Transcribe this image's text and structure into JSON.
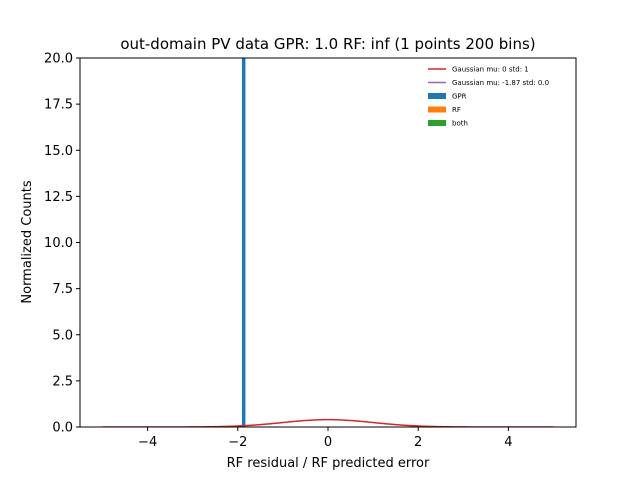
{
  "chart_data": {
    "type": "histogram",
    "title": "out-domain PV data GPR: 1.0 RF: inf (1 points 200 bins)",
    "xlabel": "RF residual / RF predicted error",
    "ylabel": "Normalized Counts",
    "xlim": [
      -5.5,
      5.5
    ],
    "ylim": [
      0,
      20
    ],
    "xticks": [
      -4,
      -2,
      0,
      2,
      4
    ],
    "xtick_labels": [
      "−4",
      "−2",
      "0",
      "2",
      "4"
    ],
    "yticks": [
      0,
      2.5,
      5,
      7.5,
      10,
      12.5,
      15,
      17.5,
      20
    ],
    "ytick_labels": [
      "0.0",
      "2.5",
      "5.0",
      "7.5",
      "10.0",
      "12.5",
      "15.0",
      "17.5",
      "20.0"
    ],
    "grid": false,
    "legend_position": "top-right",
    "series": [
      {
        "name": "Gaussian mu: 0 std: 1",
        "kind": "line",
        "color": "#d62728",
        "mu": 0,
        "std": 1,
        "x_range": [
          -5,
          5
        ]
      },
      {
        "name": "Gaussian mu: -1.87 std: 0.0",
        "kind": "line",
        "color": "#9467bd",
        "mu": -1.87,
        "std": 0.0
      },
      {
        "name": "GPR",
        "kind": "bar",
        "color": "#1f77b4",
        "x": -1.87,
        "value": 20
      },
      {
        "name": "RF",
        "kind": "bar",
        "color": "#ff7f0e"
      },
      {
        "name": "both",
        "kind": "bar",
        "color": "#2ca02c"
      }
    ]
  }
}
